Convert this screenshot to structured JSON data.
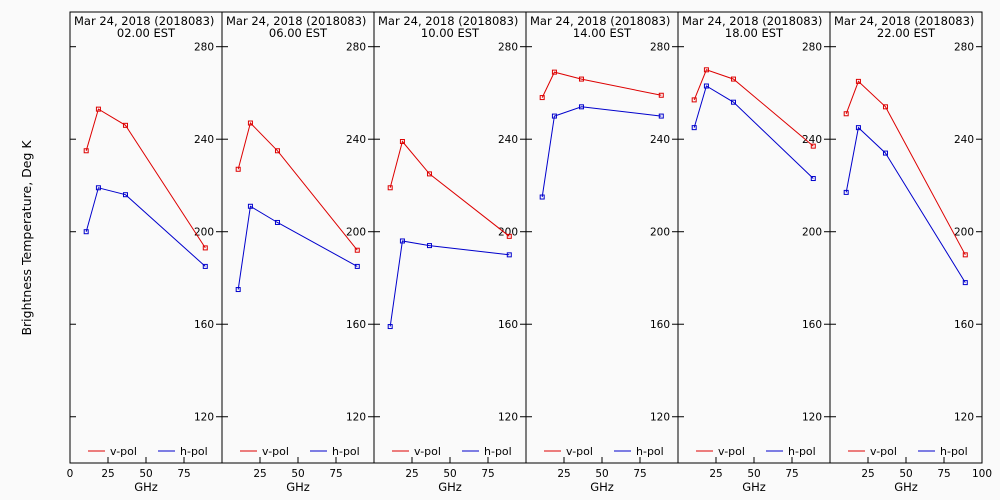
{
  "y_axis_label": "Brightness Temperature, Deg K",
  "chart_data": [
    {
      "type": "line",
      "title": "Mar 24, 2018 (2018083)",
      "subtitle": "02.00 EST",
      "xlabel": "GHz",
      "ylabel": "Brightness Temperature, Deg K",
      "x": [
        10.65,
        18.7,
        36.5,
        89
      ],
      "xlim": [
        0,
        100
      ],
      "ylim": [
        100,
        295
      ],
      "x_ticks": [
        0,
        25,
        50,
        75
      ],
      "y_ticks": [
        120,
        160,
        200,
        240,
        280
      ],
      "series": [
        {
          "name": "v-pol",
          "color": "#dd0000",
          "values": [
            235,
            253,
            246,
            193
          ]
        },
        {
          "name": "h-pol",
          "color": "#0000cc",
          "values": [
            200,
            219,
            216,
            185
          ]
        }
      ],
      "legend": "bottom"
    },
    {
      "type": "line",
      "title": "Mar 24, 2018 (2018083)",
      "subtitle": "06.00 EST",
      "xlabel": "GHz",
      "x": [
        10.65,
        18.7,
        36.5,
        89
      ],
      "xlim": [
        0,
        100
      ],
      "ylim": [
        100,
        295
      ],
      "x_ticks": [
        25,
        50,
        75
      ],
      "y_ticks": [
        120,
        160,
        200,
        240,
        280
      ],
      "series": [
        {
          "name": "v-pol",
          "color": "#dd0000",
          "values": [
            227,
            247,
            235,
            192
          ]
        },
        {
          "name": "h-pol",
          "color": "#0000cc",
          "values": [
            175,
            211,
            204,
            185
          ]
        }
      ],
      "legend": "bottom"
    },
    {
      "type": "line",
      "title": "Mar 24, 2018 (2018083)",
      "subtitle": "10.00 EST",
      "xlabel": "GHz",
      "x": [
        10.65,
        18.7,
        36.5,
        89
      ],
      "xlim": [
        0,
        100
      ],
      "ylim": [
        100,
        295
      ],
      "x_ticks": [
        25,
        50,
        75
      ],
      "y_ticks": [
        120,
        160,
        200,
        240,
        280
      ],
      "series": [
        {
          "name": "v-pol",
          "color": "#dd0000",
          "values": [
            219,
            239,
            225,
            198
          ]
        },
        {
          "name": "h-pol",
          "color": "#0000cc",
          "values": [
            159,
            196,
            194,
            190
          ]
        }
      ],
      "legend": "bottom"
    },
    {
      "type": "line",
      "title": "Mar 24, 2018 (2018083)",
      "subtitle": "14.00 EST",
      "xlabel": "GHz",
      "x": [
        10.65,
        18.7,
        36.5,
        89
      ],
      "xlim": [
        0,
        100
      ],
      "ylim": [
        100,
        295
      ],
      "x_ticks": [
        25,
        50,
        75
      ],
      "y_ticks": [
        120,
        160,
        200,
        240,
        280
      ],
      "series": [
        {
          "name": "v-pol",
          "color": "#dd0000",
          "values": [
            258,
            269,
            266,
            259
          ]
        },
        {
          "name": "h-pol",
          "color": "#0000cc",
          "values": [
            215,
            250,
            254,
            250
          ]
        }
      ],
      "legend": "bottom"
    },
    {
      "type": "line",
      "title": "Mar 24, 2018 (2018083)",
      "subtitle": "18.00 EST",
      "xlabel": "GHz",
      "x": [
        10.65,
        18.7,
        36.5,
        89
      ],
      "xlim": [
        0,
        100
      ],
      "ylim": [
        100,
        295
      ],
      "x_ticks": [
        25,
        50,
        75
      ],
      "y_ticks": [
        120,
        160,
        200,
        240,
        280
      ],
      "series": [
        {
          "name": "v-pol",
          "color": "#dd0000",
          "values": [
            257,
            270,
            266,
            237
          ]
        },
        {
          "name": "h-pol",
          "color": "#0000cc",
          "values": [
            245,
            263,
            256,
            223
          ]
        }
      ],
      "legend": "bottom"
    },
    {
      "type": "line",
      "title": "Mar 24, 2018 (2018083)",
      "subtitle": "22.00 EST",
      "xlabel": "GHz",
      "x": [
        10.65,
        18.7,
        36.5,
        89
      ],
      "xlim": [
        0,
        100
      ],
      "ylim": [
        100,
        295
      ],
      "x_ticks": [
        25,
        50,
        75,
        100
      ],
      "y_ticks": [
        120,
        160,
        200,
        240,
        280
      ],
      "series": [
        {
          "name": "v-pol",
          "color": "#dd0000",
          "values": [
            251,
            265,
            254,
            190
          ]
        },
        {
          "name": "h-pol",
          "color": "#0000cc",
          "values": [
            217,
            245,
            234,
            178
          ]
        }
      ],
      "legend": "bottom"
    }
  ]
}
